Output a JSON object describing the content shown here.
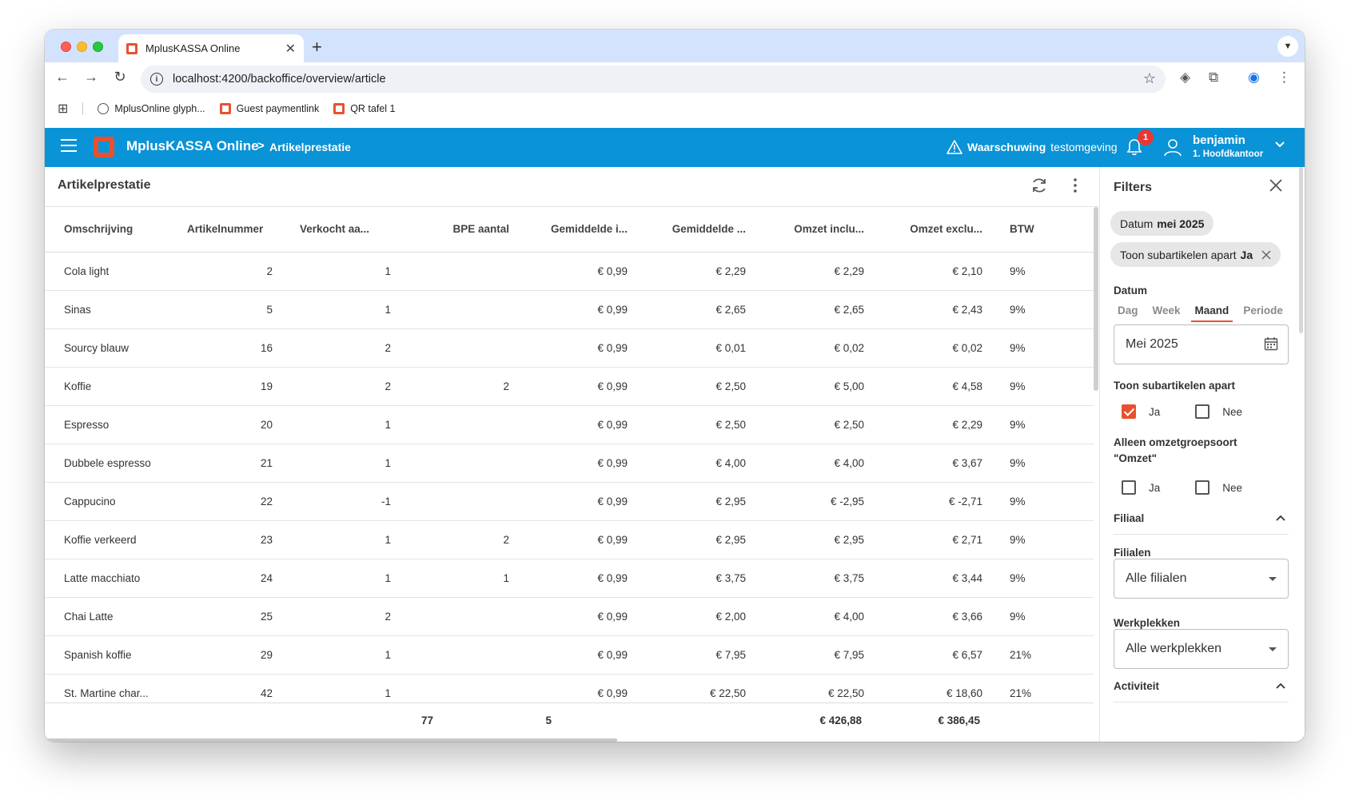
{
  "browser": {
    "tab_title": "MplusKASSA Online",
    "url": "localhost:4200/backoffice/overview/article",
    "bookmarks": [
      {
        "label": "MplusOnline glyph..."
      },
      {
        "label": "Guest paymentlink"
      },
      {
        "label": "QR tafel 1"
      }
    ]
  },
  "header": {
    "brand": "MplusKASSA Online",
    "breadcrumb_sep": ">",
    "breadcrumb": "Artikelprestatie",
    "warning_bold": "Waarschuwing",
    "warning_text": "testomgeving",
    "notification_count": "1",
    "user_name": "benjamin",
    "user_location": "1. Hoofdkantoor"
  },
  "main": {
    "title": "Artikelprestatie",
    "columns": [
      "Omschrijving",
      "Artikelnummer",
      "Verkocht aa...",
      "BPE aantal",
      "Gemiddelde i...",
      "Gemiddelde ...",
      "Omzet inclu...",
      "Omzet exclu...",
      "BTW"
    ],
    "rows": [
      {
        "name": "Cola light",
        "nr": "2",
        "sold": "1",
        "bpe": "",
        "avg_in": "€ 0,99",
        "avg": "€ 2,29",
        "incl": "€ 2,29",
        "excl": "€ 2,10",
        "btw": "9%"
      },
      {
        "name": "Sinas",
        "nr": "5",
        "sold": "1",
        "bpe": "",
        "avg_in": "€ 0,99",
        "avg": "€ 2,65",
        "incl": "€ 2,65",
        "excl": "€ 2,43",
        "btw": "9%"
      },
      {
        "name": "Sourcy blauw",
        "nr": "16",
        "sold": "2",
        "bpe": "",
        "avg_in": "€ 0,99",
        "avg": "€ 0,01",
        "incl": "€ 0,02",
        "excl": "€ 0,02",
        "btw": "9%"
      },
      {
        "name": "Koffie",
        "nr": "19",
        "sold": "2",
        "bpe": "2",
        "avg_in": "€ 0,99",
        "avg": "€ 2,50",
        "incl": "€ 5,00",
        "excl": "€ 4,58",
        "btw": "9%"
      },
      {
        "name": "Espresso",
        "nr": "20",
        "sold": "1",
        "bpe": "",
        "avg_in": "€ 0,99",
        "avg": "€ 2,50",
        "incl": "€ 2,50",
        "excl": "€ 2,29",
        "btw": "9%"
      },
      {
        "name": "Dubbele espresso",
        "nr": "21",
        "sold": "1",
        "bpe": "",
        "avg_in": "€ 0,99",
        "avg": "€ 4,00",
        "incl": "€ 4,00",
        "excl": "€ 3,67",
        "btw": "9%"
      },
      {
        "name": "Cappucino",
        "nr": "22",
        "sold": "-1",
        "bpe": "",
        "avg_in": "€ 0,99",
        "avg": "€ 2,95",
        "incl": "€ -2,95",
        "excl": "€ -2,71",
        "btw": "9%"
      },
      {
        "name": "Koffie verkeerd",
        "nr": "23",
        "sold": "1",
        "bpe": "2",
        "avg_in": "€ 0,99",
        "avg": "€ 2,95",
        "incl": "€ 2,95",
        "excl": "€ 2,71",
        "btw": "9%"
      },
      {
        "name": "Latte macchiato",
        "nr": "24",
        "sold": "1",
        "bpe": "1",
        "avg_in": "€ 0,99",
        "avg": "€ 3,75",
        "incl": "€ 3,75",
        "excl": "€ 3,44",
        "btw": "9%"
      },
      {
        "name": "Chai Latte",
        "nr": "25",
        "sold": "2",
        "bpe": "",
        "avg_in": "€ 0,99",
        "avg": "€ 2,00",
        "incl": "€ 4,00",
        "excl": "€ 3,66",
        "btw": "9%"
      },
      {
        "name": "Spanish koffie",
        "nr": "29",
        "sold": "1",
        "bpe": "",
        "avg_in": "€ 0,99",
        "avg": "€ 7,95",
        "incl": "€ 7,95",
        "excl": "€ 6,57",
        "btw": "21%"
      },
      {
        "name": "St. Martine char...",
        "nr": "42",
        "sold": "1",
        "bpe": "",
        "avg_in": "€ 0,99",
        "avg": "€ 22,50",
        "incl": "€ 22,50",
        "excl": "€ 18,60",
        "btw": "21%"
      }
    ],
    "totals": {
      "sold": "77",
      "bpe": "5",
      "incl": "€ 426,88",
      "excl": "€ 386,45"
    }
  },
  "filters": {
    "title": "Filters",
    "chip_date_label": "Datum",
    "chip_date_value": "mei 2025",
    "chip_sub_label": "Toon subartikelen apart",
    "chip_sub_value": "Ja",
    "date_label": "Datum",
    "period_tabs": [
      "Dag",
      "Week",
      "Maand",
      "Periode"
    ],
    "active_period": "Maand",
    "date_value": "Mei 2025",
    "sub_label": "Toon subartikelen apart",
    "yes": "Ja",
    "no": "Nee",
    "sub_yes_checked": true,
    "omzet_label_1": "Alleen omzetgroepsoort",
    "omzet_label_2": "\"Omzet\"",
    "filiaal_head": "Filiaal",
    "filialen_label": "Filialen",
    "filialen_value": "Alle filialen",
    "werkplekken_label": "Werkplekken",
    "werkplekken_value": "Alle werkplekken",
    "activiteit_head": "Activiteit"
  },
  "colors": {
    "header_blue": "#0a93d6",
    "accent_orange": "#e8512f",
    "badge_red": "#e53935"
  }
}
